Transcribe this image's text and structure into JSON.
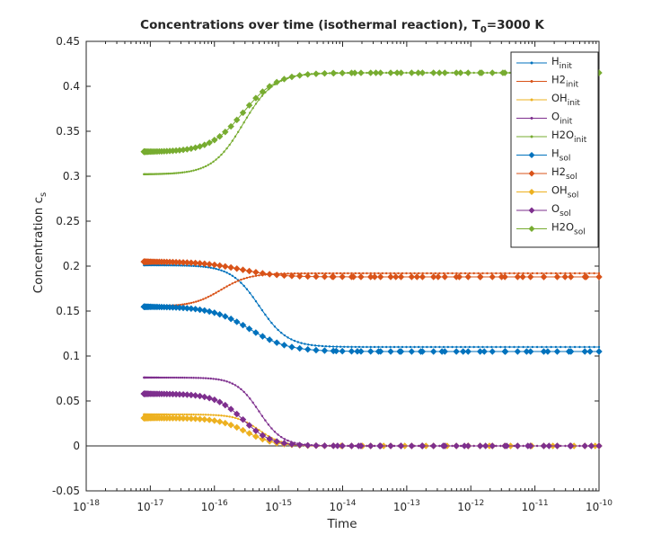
{
  "chart_data": {
    "type": "line",
    "title": {
      "main": "Concentrations over time (isothermal reaction), T",
      "sub": "0",
      "tail": "=3000 K"
    },
    "xlabel": "Time",
    "ylabel": {
      "main": "Concentration c",
      "sub": "s"
    },
    "x_scale": "log",
    "xlim": [
      1e-18,
      1e-10
    ],
    "ylim": [
      -0.05,
      0.45
    ],
    "x_ticks": [
      {
        "base": "10",
        "exp": "-18",
        "value": -18
      },
      {
        "base": "10",
        "exp": "-17",
        "value": -17
      },
      {
        "base": "10",
        "exp": "-16",
        "value": -16
      },
      {
        "base": "10",
        "exp": "-15",
        "value": -15
      },
      {
        "base": "10",
        "exp": "-14",
        "value": -14
      },
      {
        "base": "10",
        "exp": "-13",
        "value": -13
      },
      {
        "base": "10",
        "exp": "-12",
        "value": -12
      },
      {
        "base": "10",
        "exp": "-11",
        "value": -11
      },
      {
        "base": "10",
        "exp": "-10",
        "value": -10
      }
    ],
    "y_ticks": [
      "-0.05",
      "0",
      "0.05",
      "0.1",
      "0.15",
      "0.2",
      "0.25",
      "0.3",
      "0.35",
      "0.4",
      "0.45"
    ],
    "y_tick_values": [
      -0.05,
      0,
      0.05,
      0.1,
      0.15,
      0.2,
      0.25,
      0.3,
      0.35,
      0.4,
      0.45
    ],
    "zero_line": true,
    "grid": false,
    "legend_position": "top-right",
    "t_start_log10": -17.1,
    "series": [
      {
        "name": "H",
        "sub": "init",
        "color": "#0072bd",
        "marker": "dot",
        "start": 0.201,
        "end": 0.11,
        "t_mid_log10": -15.3,
        "width": 0.22
      },
      {
        "name": "H2",
        "sub": "init",
        "color": "#d95319",
        "marker": "dot",
        "start": 0.155,
        "end": 0.192,
        "t_mid_log10": -15.9,
        "width": 0.22
      },
      {
        "name": "OH",
        "sub": "init",
        "color": "#edb120",
        "marker": "dot",
        "start": 0.035,
        "end": 0.0,
        "t_mid_log10": -15.3,
        "width": 0.18
      },
      {
        "name": "O",
        "sub": "init",
        "color": "#7e2f8e",
        "marker": "dot",
        "start": 0.076,
        "end": 0.0,
        "t_mid_log10": -15.3,
        "width": 0.18
      },
      {
        "name": "H2O",
        "sub": "init",
        "color": "#77ac30",
        "marker": "dot",
        "start": 0.302,
        "end": 0.415,
        "t_mid_log10": -15.55,
        "width": 0.24
      },
      {
        "name": "H",
        "sub": "sol",
        "color": "#0072bd",
        "marker": "diamond",
        "start": 0.155,
        "end": 0.105,
        "t_mid_log10": -15.45,
        "width": 0.3
      },
      {
        "name": "H2",
        "sub": "sol",
        "color": "#d95319",
        "marker": "diamond",
        "start": 0.205,
        "end": 0.188,
        "t_mid_log10": -15.6,
        "width": 0.3
      },
      {
        "name": "OH",
        "sub": "sol",
        "color": "#edb120",
        "marker": "diamond",
        "start": 0.031,
        "end": 0.0,
        "t_mid_log10": -15.5,
        "width": 0.22
      },
      {
        "name": "O",
        "sub": "sol",
        "color": "#7e2f8e",
        "marker": "diamond",
        "start": 0.058,
        "end": 0.0,
        "t_mid_log10": -15.55,
        "width": 0.22
      },
      {
        "name": "H2O",
        "sub": "sol",
        "color": "#77ac30",
        "marker": "diamond",
        "start": 0.327,
        "end": 0.415,
        "t_mid_log10": -15.55,
        "width": 0.26
      }
    ]
  }
}
